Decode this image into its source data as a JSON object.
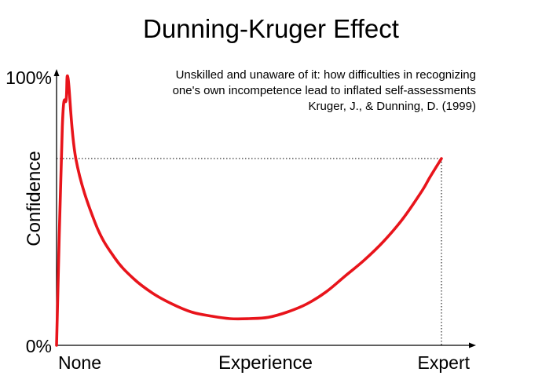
{
  "chart_data": {
    "type": "line",
    "title": "Dunning-Kruger Effect",
    "subtitle_lines": [
      "Unskilled and unaware of it: how difficulties in recognizing",
      "one's own incompetence lead to inflated self-assessments",
      "Kruger, J., & Dunning, D. (1999)"
    ],
    "xlabel": "Experience",
    "ylabel": "Confidence",
    "x_tick_labels": [
      "None",
      "Expert"
    ],
    "y_tick_labels": [
      "0%",
      "100%"
    ],
    "xlim": [
      0,
      1
    ],
    "ylim": [
      0,
      100
    ],
    "grid": false,
    "series": [
      {
        "color": "#e8141b",
        "x": [
          0,
          0.015,
          0.025,
          0.03,
          0.05,
          0.1,
          0.15,
          0.2,
          0.25,
          0.3,
          0.35,
          0.4,
          0.45,
          0.5,
          0.55,
          0.6,
          0.65,
          0.7,
          0.75,
          0.8,
          0.85,
          0.9,
          0.95,
          0.97,
          1.0
        ],
        "y": [
          0,
          82,
          92,
          100,
          70,
          46,
          33,
          25,
          19.5,
          15.5,
          12.5,
          11,
          10,
          10,
          10.5,
          12.5,
          15.5,
          20,
          26,
          32,
          39,
          47.5,
          58,
          63,
          70
        ]
      }
    ],
    "reference_line": {
      "y": 70,
      "x_end": 1.0,
      "style": "dotted",
      "color": "#000000"
    }
  }
}
